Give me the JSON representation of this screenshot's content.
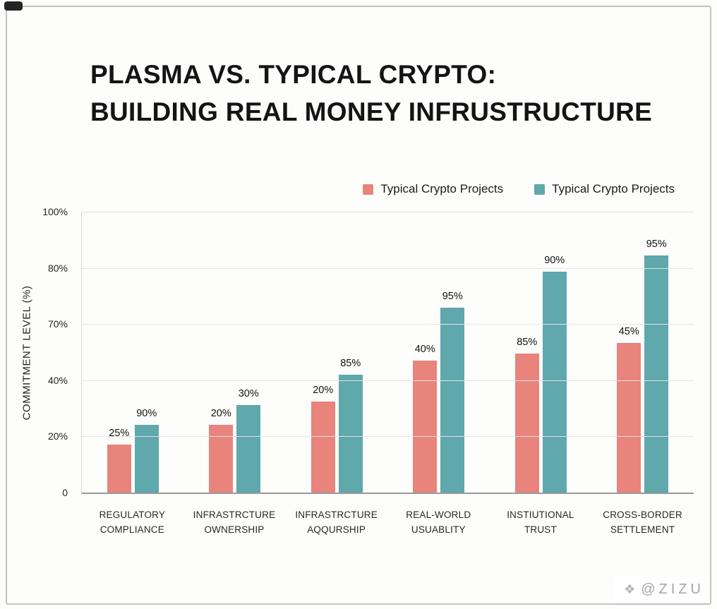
{
  "title": {
    "line1": "PLASMA VS. TYPICAL CRYPTO:",
    "line2": "BUILDING REAL MONEY INFRUSTRUCTURE"
  },
  "legend": {
    "items": [
      {
        "label": "Typical Crypto Projects",
        "color": "#e8847c"
      },
      {
        "label": "Typical Crypto Projects",
        "color": "#5fa8ac"
      }
    ]
  },
  "watermark": {
    "handle": "@ZIZU",
    "icon": "diamond-icon"
  },
  "chart_data": {
    "type": "bar",
    "title": "PLASMA VS. TYPICAL CRYPTO: BUILDING REAL MONEY INFRUSTRUCTURE",
    "ylabel": "COMMITMENT LEVEL (%)",
    "y_ticks": [
      "100%",
      "80%",
      "70%",
      "40%",
      "20%",
      "0"
    ],
    "grid": true,
    "legend_position": "top-right",
    "categories": [
      [
        "REGULATORY",
        "COMPLIANCE"
      ],
      [
        "INFRASTRCTURE",
        "OWNERSHIP"
      ],
      [
        "INFRASTRCTURE",
        "AQQURSHIP"
      ],
      [
        "REAL-WORLD",
        "USUABLITY"
      ],
      [
        "INSTIUTIONAL",
        "TRUST"
      ],
      [
        "CROSS-BORDER",
        "SETTLEMENT"
      ]
    ],
    "series": [
      {
        "name": "Typical Crypto Projects",
        "color": "#e8847c",
        "labels": [
          "25%",
          "20%",
          "20%",
          "40%",
          "85%",
          "45%"
        ],
        "values": [
          25,
          20,
          20,
          40,
          85,
          45
        ],
        "bar_heights_pct_of_axis": [
          17,
          24,
          32.5,
          47,
          49.5,
          53.25
        ]
      },
      {
        "name": "Typical Crypto Projects",
        "color": "#5fa8ac",
        "labels": [
          "90%",
          "30%",
          "85%",
          "95%",
          "90%",
          "95%"
        ],
        "values": [
          90,
          30,
          85,
          95,
          90,
          95
        ],
        "bar_heights_pct_of_axis": [
          24,
          31.25,
          42,
          65.75,
          78.75,
          84.5
        ]
      }
    ]
  }
}
